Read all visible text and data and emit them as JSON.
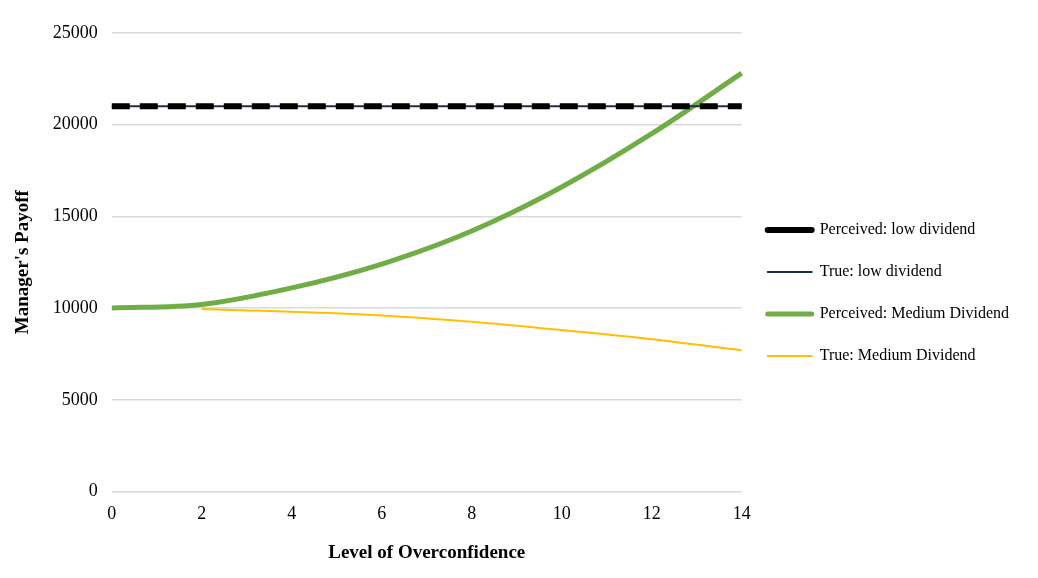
{
  "chart_data": {
    "type": "line",
    "xlabel": "Level of Overconfidence",
    "ylabel": "Manager's Payoff",
    "categories": [
      "0",
      "2",
      "4",
      "6",
      "8",
      "10",
      "12",
      "14"
    ],
    "ylim": [
      0,
      25000
    ],
    "yticks": [
      0,
      5000,
      10000,
      15000,
      20000,
      25000
    ],
    "grid": "y",
    "legend": "right",
    "marker": "none",
    "series": [
      {
        "name": "Perceived: low dividend",
        "color": "#000000",
        "line_style": "dashed",
        "values": [
          21000,
          21000,
          21000,
          21000,
          21000,
          21000,
          21000,
          21000
        ]
      },
      {
        "name": "True: low dividend",
        "color": "#1f2d4a",
        "line_style": "solid",
        "values": [
          21000,
          21000,
          21000,
          21000,
          21000,
          21000,
          21000,
          21000
        ]
      },
      {
        "name": "Perceived: Medium Dividend",
        "color": "#70ad47",
        "line_style": "solid",
        "values": [
          10000,
          10200,
          11100,
          12400,
          14200,
          16600,
          19500,
          22800
        ]
      },
      {
        "name": "True: Medium Dividend",
        "color": "#ffc000",
        "line_style": "solid",
        "values": [
          null,
          9950,
          9800,
          9600,
          9250,
          8800,
          8300,
          7700
        ]
      }
    ]
  }
}
